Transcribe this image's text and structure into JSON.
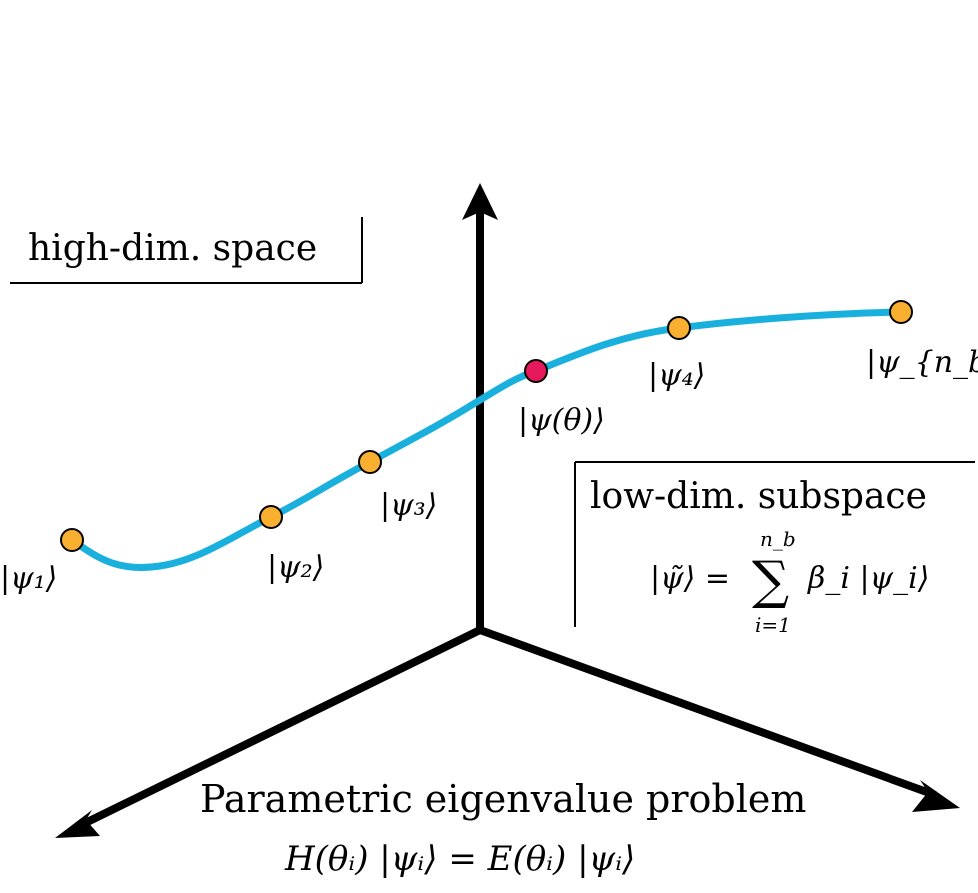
{
  "boxes": {
    "high_dim": {
      "label": "high-dim. space"
    },
    "low_dim": {
      "label": "low-dim. subspace",
      "formula_lhs": "|ψ̃⟩ =",
      "sum_upper": "n_b",
      "sum_symbol": "∑",
      "sum_lower": "i=1",
      "formula_rhs": "β_i |ψ_i⟩"
    }
  },
  "states": [
    {
      "id": "psi1",
      "label": "|ψ₁⟩",
      "kind": "basis"
    },
    {
      "id": "psi2",
      "label": "|ψ₂⟩",
      "kind": "basis"
    },
    {
      "id": "psi3",
      "label": "|ψ₃⟩",
      "kind": "basis"
    },
    {
      "id": "psi_theta",
      "label": "|ψ(θ)⟩",
      "kind": "target"
    },
    {
      "id": "psi4",
      "label": "|ψ₄⟩",
      "kind": "basis"
    },
    {
      "id": "psi_nb",
      "label": "|ψ_{n_b}⟩",
      "kind": "basis"
    }
  ],
  "problem": {
    "title": "Parametric eigenvalue problem",
    "equation": "H(θᵢ) |ψᵢ⟩ = E(θᵢ) |ψᵢ⟩"
  },
  "colors": {
    "curve": "#1ab0de",
    "basis_point": "#f9b031",
    "target_point": "#e6195b",
    "axis": "#000000"
  }
}
